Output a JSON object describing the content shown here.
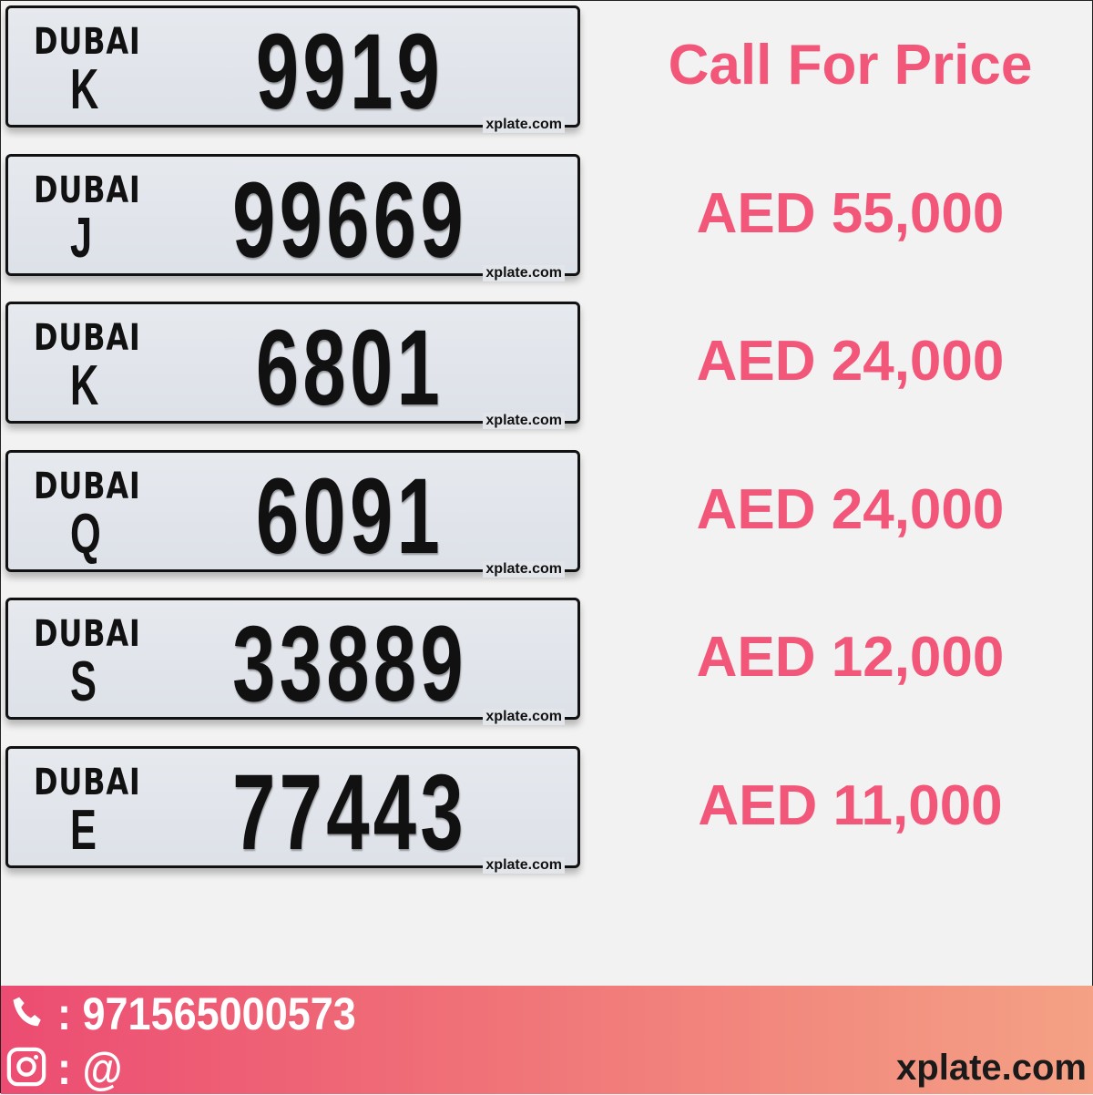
{
  "listings": [
    {
      "emirate": "DUBAI",
      "code": "K",
      "number": "9919",
      "watermark": "xplate.com",
      "price": "Call For Price"
    },
    {
      "emirate": "DUBAI",
      "code": "J",
      "number": "99669",
      "watermark": "xplate.com",
      "price": "AED 55,000"
    },
    {
      "emirate": "DUBAI",
      "code": "K",
      "number": "6801",
      "watermark": "xplate.com",
      "price": "AED 24,000"
    },
    {
      "emirate": "DUBAI",
      "code": "Q",
      "number": "6091",
      "watermark": "xplate.com",
      "price": "AED 24,000"
    },
    {
      "emirate": "DUBAI",
      "code": "S",
      "number": "33889",
      "watermark": "xplate.com",
      "price": "AED 12,000"
    },
    {
      "emirate": "DUBAI",
      "code": "E",
      "number": "77443",
      "watermark": "xplate.com",
      "price": "AED 11,000"
    }
  ],
  "footer": {
    "phone": ": 971565000573",
    "instagram": ": @",
    "site": "xplate.com",
    "phone_icon": "phone-icon",
    "instagram_icon": "instagram-icon"
  },
  "colors": {
    "price": "#f2577a",
    "footer_start": "#ec4c72",
    "footer_end": "#f4a185"
  }
}
